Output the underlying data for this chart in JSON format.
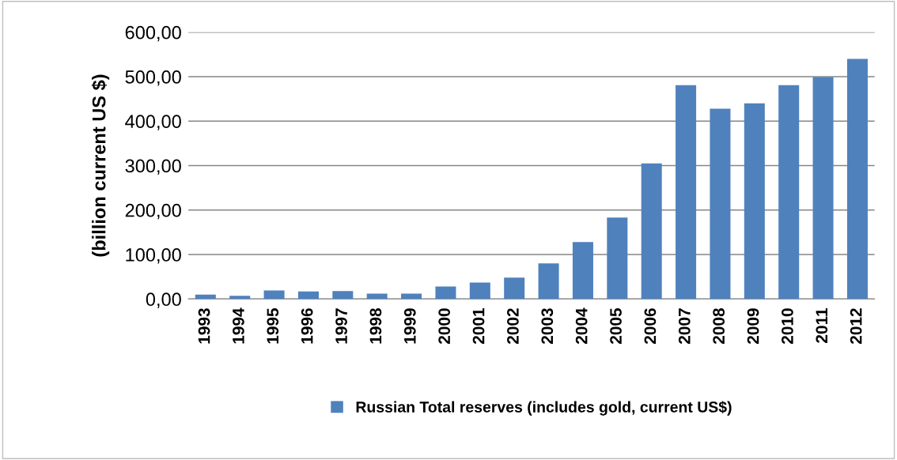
{
  "chart_data": {
    "type": "bar",
    "ylabel": "(billion current US $)",
    "categories": [
      "1993",
      "1994",
      "1995",
      "1996",
      "1997",
      "1998",
      "1999",
      "2000",
      "2001",
      "2002",
      "2003",
      "2004",
      "2005",
      "2006",
      "2007",
      "2008",
      "2009",
      "2010",
      "2011",
      "2012"
    ],
    "series": [
      {
        "name": "Russian Total reserves (includes gold, current US$)",
        "color": "#4f81bd",
        "values": [
          10,
          7,
          19,
          17,
          18,
          12,
          12,
          28,
          37,
          48,
          80,
          128,
          183,
          305,
          481,
          428,
          440,
          481,
          499,
          540
        ]
      }
    ],
    "ylim": [
      0,
      600
    ],
    "yticks": [
      {
        "value": 0,
        "label": "0,00"
      },
      {
        "value": 100,
        "label": "100,00"
      },
      {
        "value": 200,
        "label": "200,00"
      },
      {
        "value": 300,
        "label": "300,00"
      },
      {
        "value": 400,
        "label": "400,00"
      },
      {
        "value": 500,
        "label": "500,00"
      },
      {
        "value": 600,
        "label": "600,00"
      }
    ],
    "grid": "y",
    "legend": "bottom"
  }
}
